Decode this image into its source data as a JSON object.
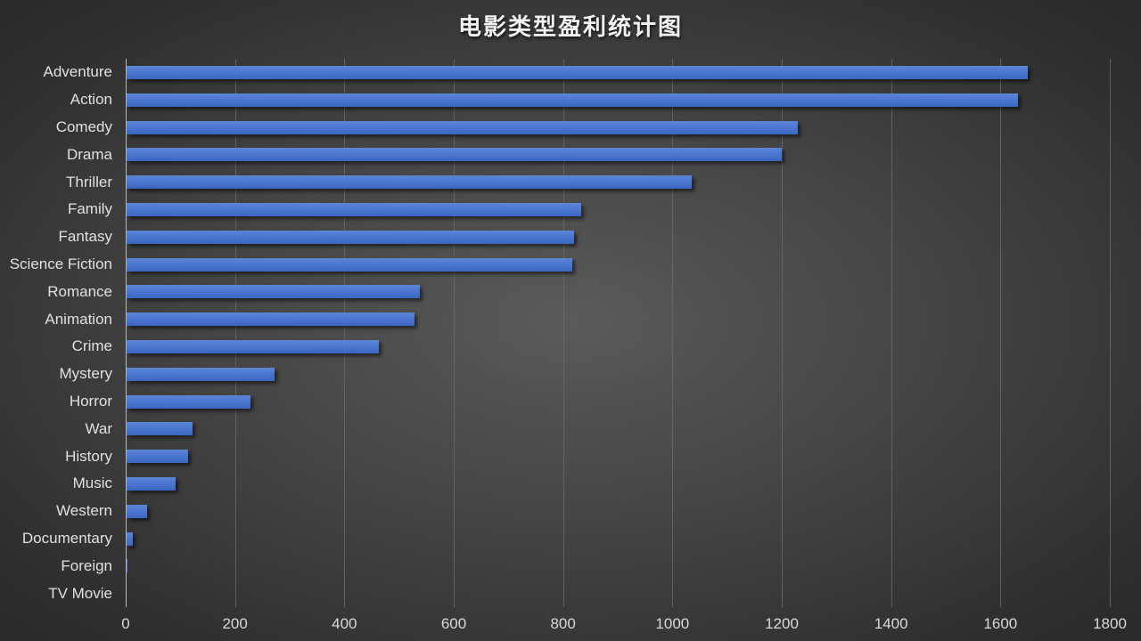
{
  "chart_data": {
    "type": "bar",
    "orientation": "horizontal",
    "title": "电影类型盈利统计图",
    "xlabel": "",
    "ylabel": "",
    "xlim": [
      0,
      1800
    ],
    "xticks": [
      0,
      200,
      400,
      600,
      800,
      1000,
      1200,
      1400,
      1600,
      1800
    ],
    "grid": true,
    "legend": null,
    "categories": [
      "Adventure",
      "Action",
      "Comedy",
      "Drama",
      "Thriller",
      "Family",
      "Fantasy",
      "Science Fiction",
      "Romance",
      "Animation",
      "Crime",
      "Mystery",
      "Horror",
      "War",
      "History",
      "Music",
      "Western",
      "Documentary",
      "Foreign",
      "TV Movie"
    ],
    "values": [
      1649,
      1630,
      1227,
      1198,
      1033,
      832,
      819,
      816,
      536,
      527,
      461,
      271,
      226,
      121,
      113,
      89,
      38,
      11,
      1,
      0
    ],
    "bar_color": "#4472C4",
    "background": "#3a3a3a"
  }
}
